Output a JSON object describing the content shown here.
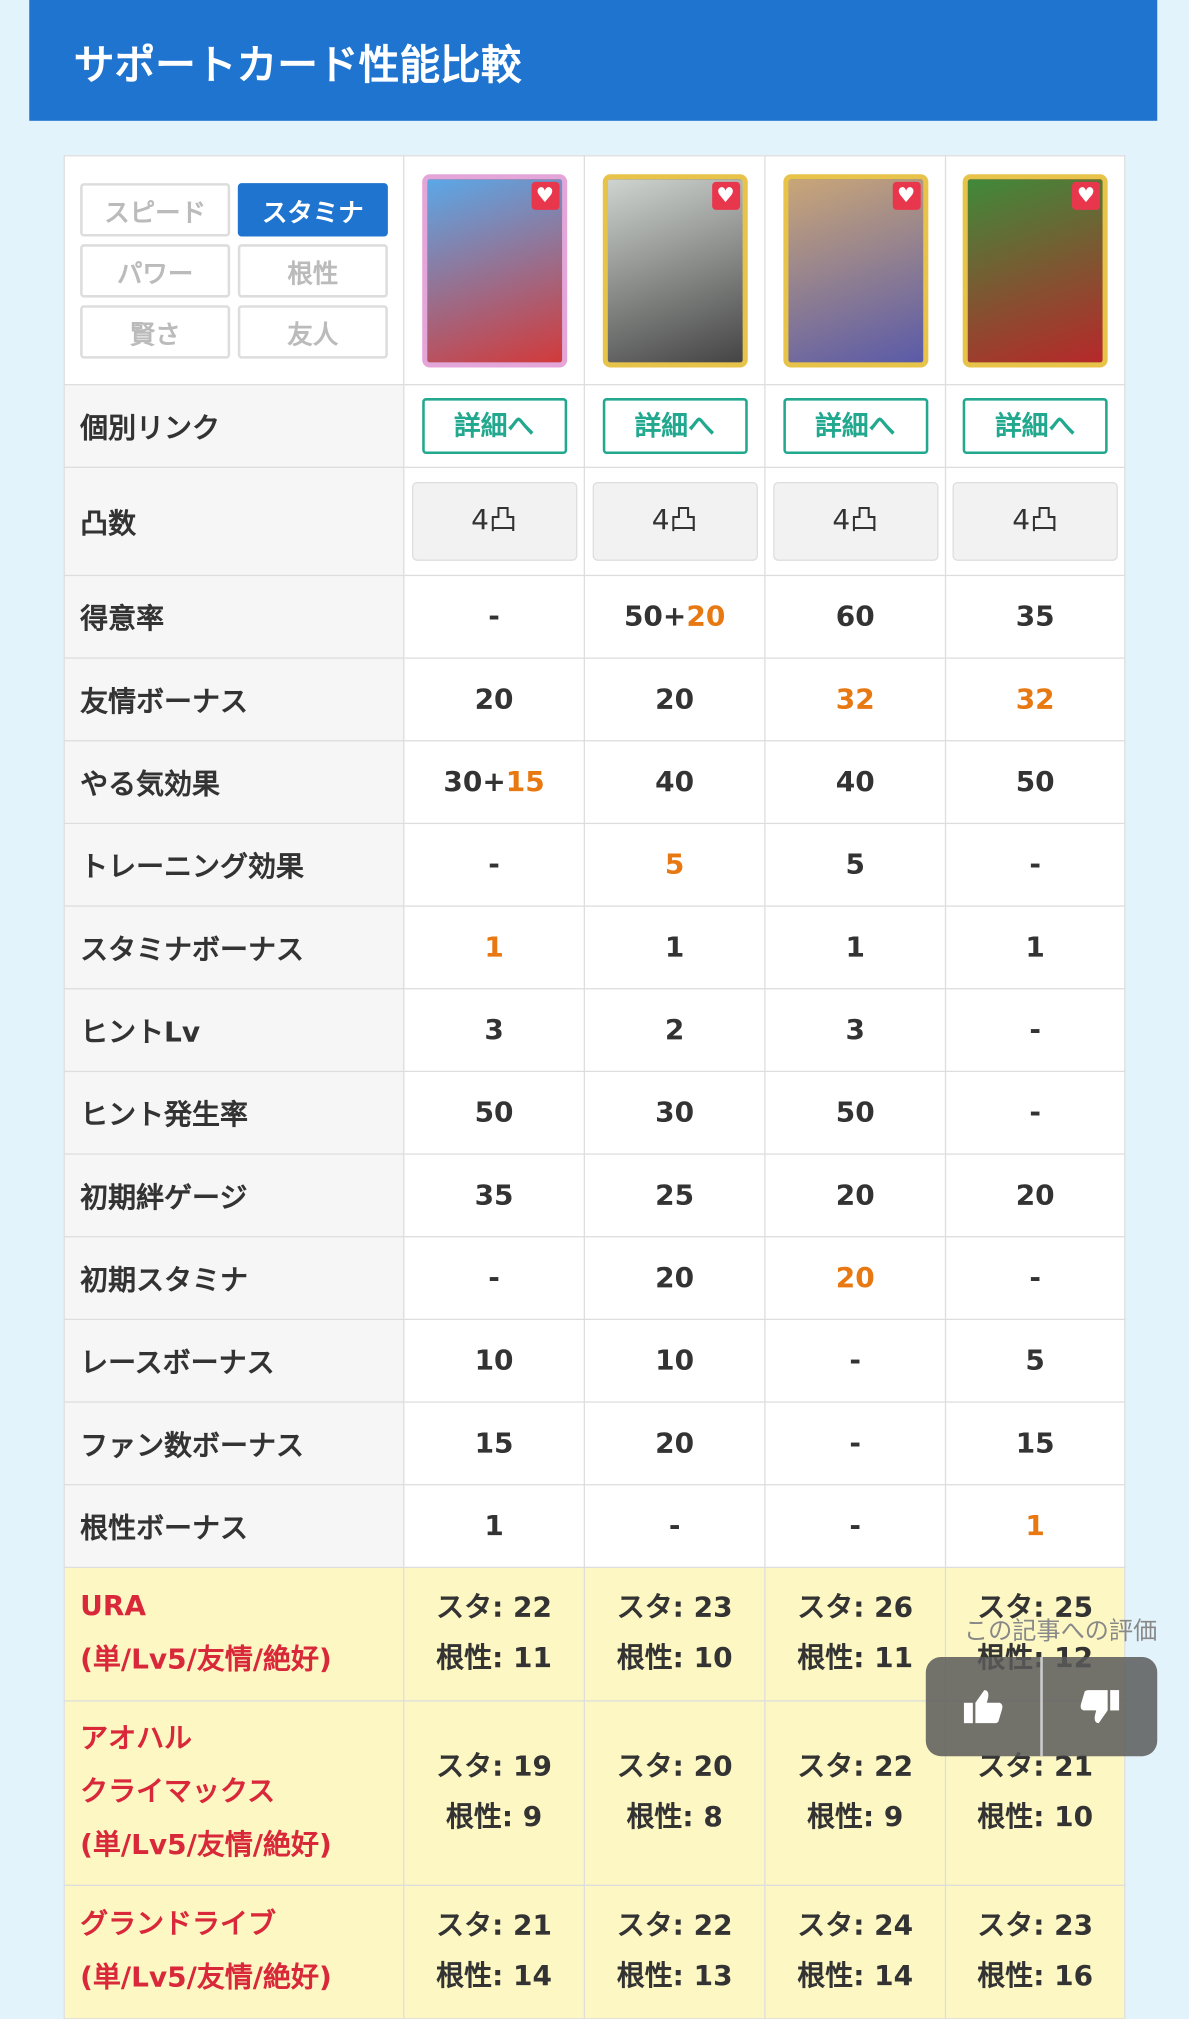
{
  "header": {
    "title": "サポートカード性能比較"
  },
  "filters": {
    "items": [
      "スピード",
      "スタミナ",
      "パワー",
      "根性",
      "賢さ",
      "友人"
    ],
    "active": 1
  },
  "cards": [
    {
      "border": "#e4a6d8",
      "art": [
        "#5aa8e8",
        "#d23a3a"
      ]
    },
    {
      "border": "#e7c34a",
      "art": [
        "#cfd4d0",
        "#444"
      ]
    },
    {
      "border": "#e7c34a",
      "art": [
        "#c9a678",
        "#5a5aa8"
      ]
    },
    {
      "border": "#e7c34a",
      "art": [
        "#3f8a3a",
        "#b7282a"
      ]
    }
  ],
  "link_row": {
    "label": "個別リンク",
    "links": [
      "詳細へ",
      "詳細へ",
      "詳細へ",
      "詳細へ"
    ]
  },
  "limit_row": {
    "label": "凸数",
    "values": [
      "4凸",
      "4凸",
      "4凸",
      "4凸"
    ]
  },
  "rows": [
    {
      "label": "得意率",
      "cells": [
        {
          "t": "-"
        },
        {
          "t": "50+",
          "o": "20"
        },
        {
          "t": "60"
        },
        {
          "t": "35"
        }
      ]
    },
    {
      "label": "友情ボーナス",
      "cells": [
        {
          "t": "20"
        },
        {
          "t": "20"
        },
        {
          "o": "32"
        },
        {
          "o": "32"
        }
      ]
    },
    {
      "label": "やる気効果",
      "cells": [
        {
          "t": "30+",
          "o": "15"
        },
        {
          "t": "40"
        },
        {
          "t": "40"
        },
        {
          "t": "50"
        }
      ]
    },
    {
      "label": "トレーニング効果",
      "cells": [
        {
          "t": "-"
        },
        {
          "o": "5"
        },
        {
          "t": "5"
        },
        {
          "t": "-"
        }
      ]
    },
    {
      "label": "スタミナボーナス",
      "cells": [
        {
          "o": "1"
        },
        {
          "t": "1"
        },
        {
          "t": "1"
        },
        {
          "t": "1"
        }
      ]
    },
    {
      "label": "ヒントLv",
      "cells": [
        {
          "t": "3"
        },
        {
          "t": "2"
        },
        {
          "t": "3"
        },
        {
          "t": "-"
        }
      ]
    },
    {
      "label": "ヒント発生率",
      "cells": [
        {
          "t": "50"
        },
        {
          "t": "30"
        },
        {
          "t": "50"
        },
        {
          "t": "-"
        }
      ]
    },
    {
      "label": "初期絆ゲージ",
      "cells": [
        {
          "t": "35"
        },
        {
          "t": "25"
        },
        {
          "t": "20"
        },
        {
          "t": "20"
        }
      ]
    },
    {
      "label": "初期スタミナ",
      "cells": [
        {
          "t": "-"
        },
        {
          "t": "20"
        },
        {
          "o": "20"
        },
        {
          "t": "-"
        }
      ]
    },
    {
      "label": "レースボーナス",
      "cells": [
        {
          "t": "10"
        },
        {
          "t": "10"
        },
        {
          "t": "-"
        },
        {
          "t": "5"
        }
      ]
    },
    {
      "label": "ファン数ボーナス",
      "cells": [
        {
          "t": "15"
        },
        {
          "t": "20"
        },
        {
          "t": "-"
        },
        {
          "t": "15"
        }
      ]
    },
    {
      "label": "根性ボーナス",
      "cells": [
        {
          "t": "1"
        },
        {
          "t": "-"
        },
        {
          "t": "-"
        },
        {
          "o": "1"
        }
      ]
    }
  ],
  "scenario_rows": [
    {
      "label": [
        "URA",
        "(単/Lv5/友情/絶好)"
      ],
      "cells": [
        [
          "スタ: 22",
          "根性: 11"
        ],
        [
          "スタ: 23",
          "根性: 10"
        ],
        [
          "スタ: 26",
          "根性: 11"
        ],
        [
          "スタ: 25",
          "根性: 12"
        ]
      ]
    },
    {
      "label": [
        "アオハル",
        "クライマックス",
        "(単/Lv5/友情/絶好)"
      ],
      "cells": [
        [
          "スタ: 19",
          "根性: 9"
        ],
        [
          "スタ: 20",
          "根性: 8"
        ],
        [
          "スタ: 22",
          "根性: 9"
        ],
        [
          "スタ: 21",
          "根性: 10"
        ]
      ]
    },
    {
      "label": [
        "グランドライブ",
        "(単/Lv5/友情/絶好)"
      ],
      "cells": [
        [
          "スタ: 21",
          "根性: 14"
        ],
        [
          "スタ: 22",
          "根性: 13"
        ],
        [
          "スタ: 24",
          "根性: 14"
        ],
        [
          "スタ: 23",
          "根性: 16"
        ]
      ]
    }
  ],
  "rating": {
    "title": "この記事への評価"
  }
}
